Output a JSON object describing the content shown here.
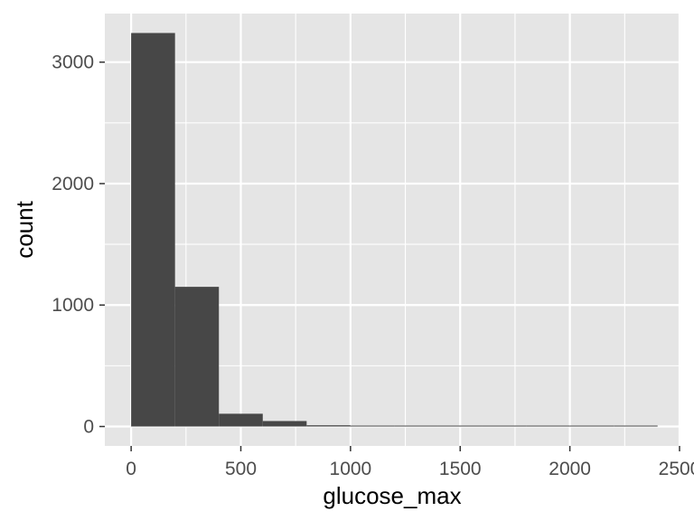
{
  "chart_data": {
    "type": "bar",
    "title": "",
    "xlabel": "glucose_max",
    "ylabel": "count",
    "xlim": [
      -120,
      2500
    ],
    "ylim": [
      -160,
      3400
    ],
    "bin_width": 200,
    "bins": [
      {
        "x0": 0,
        "x1": 200,
        "count": 3240
      },
      {
        "x0": 200,
        "x1": 400,
        "count": 1150
      },
      {
        "x0": 400,
        "x1": 600,
        "count": 105
      },
      {
        "x0": 600,
        "x1": 800,
        "count": 45
      },
      {
        "x0": 800,
        "x1": 1000,
        "count": 10
      },
      {
        "x0": 1000,
        "x1": 1200,
        "count": 6
      },
      {
        "x0": 1200,
        "x1": 1400,
        "count": 4
      },
      {
        "x0": 1400,
        "x1": 1600,
        "count": 2
      },
      {
        "x0": 1600,
        "x1": 1800,
        "count": 2
      },
      {
        "x0": 1800,
        "x1": 2000,
        "count": 1
      },
      {
        "x0": 2000,
        "x1": 2200,
        "count": 1
      },
      {
        "x0": 2200,
        "x1": 2400,
        "count": 2
      }
    ],
    "x_ticks": [
      0,
      500,
      1000,
      1500,
      2000,
      2500
    ],
    "y_ticks": [
      0,
      1000,
      2000,
      3000
    ],
    "grid": true,
    "colors": {
      "panel_bg": "#e5e5e5",
      "grid_major": "#ffffff",
      "bar_fill": "#474747",
      "tick_text": "#4d4d4d",
      "axis_title": "#000000"
    }
  }
}
